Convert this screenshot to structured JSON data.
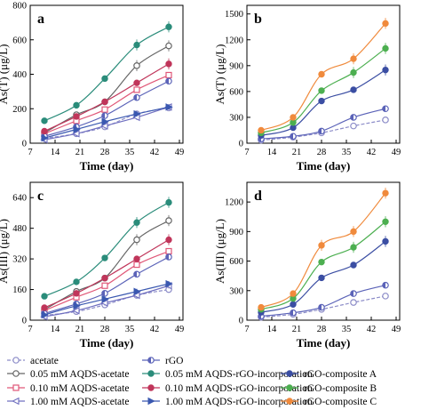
{
  "chart_data": [
    {
      "panel": "a",
      "type": "scatter",
      "xlabel": "Time (day)",
      "ylabel": "As(T) (μg/L)",
      "xlim": [
        7,
        50
      ],
      "ylim": [
        0,
        800
      ],
      "xticks": [
        7,
        14,
        21,
        28,
        35,
        42,
        49
      ],
      "yticks": [
        0,
        200,
        400,
        600,
        800
      ],
      "series": [
        {
          "name": "acetate",
          "x": [
            11,
            20,
            28,
            37,
            46
          ],
          "y": [
            28,
            55,
            95,
            170,
            205
          ]
        },
        {
          "name": "0.05 mM AQDS-acetate",
          "x": [
            11,
            20,
            28,
            37,
            46
          ],
          "y": [
            60,
            165,
            240,
            450,
            565
          ]
        },
        {
          "name": "0.10 mM AQDS-acetate",
          "x": [
            11,
            20,
            28,
            37,
            46
          ],
          "y": [
            55,
            130,
            195,
            310,
            395
          ]
        },
        {
          "name": "1.00 mM AQDS-acetate",
          "x": [
            11,
            20,
            28,
            37,
            46
          ],
          "y": [
            20,
            55,
            100,
            150,
            210
          ]
        },
        {
          "name": "rGO",
          "x": [
            11,
            20,
            28,
            37,
            46
          ],
          "y": [
            40,
            95,
            160,
            265,
            360
          ]
        },
        {
          "name": "0.05 mM AQDS-rGO-incorporation",
          "x": [
            11,
            20,
            28,
            37,
            46
          ],
          "y": [
            130,
            220,
            375,
            570,
            675
          ]
        },
        {
          "name": "0.10 mM AQDS-rGO-incorporation",
          "x": [
            11,
            20,
            28,
            37,
            46
          ],
          "y": [
            70,
            155,
            240,
            350,
            460
          ]
        },
        {
          "name": "1.00 mM AQDS-rGO-incorporation",
          "x": [
            11,
            20,
            28,
            37,
            46
          ],
          "y": [
            30,
            80,
            125,
            170,
            210
          ]
        }
      ]
    },
    {
      "panel": "b",
      "type": "scatter",
      "xlabel": "Time (day)",
      "ylabel": "As(T) (μg/L)",
      "xlim": [
        7,
        50
      ],
      "ylim": [
        0,
        1600
      ],
      "xticks": [
        7,
        14,
        21,
        28,
        35,
        42,
        49
      ],
      "yticks": [
        0,
        300,
        600,
        900,
        1200,
        1500
      ],
      "series": [
        {
          "name": "acetate",
          "x": [
            11,
            20,
            28,
            37,
            46
          ],
          "y": [
            35,
            70,
            120,
            200,
            270
          ]
        },
        {
          "name": "rGO",
          "x": [
            11,
            20,
            28,
            37,
            46
          ],
          "y": [
            50,
            80,
            140,
            300,
            400
          ]
        },
        {
          "name": "rGO-composite A",
          "x": [
            11,
            20,
            28,
            37,
            46
          ],
          "y": [
            90,
            180,
            490,
            620,
            850
          ]
        },
        {
          "name": "rGO-composite B",
          "x": [
            11,
            20,
            28,
            37,
            46
          ],
          "y": [
            120,
            240,
            610,
            820,
            1100
          ]
        },
        {
          "name": "rGO-composite C",
          "x": [
            11,
            20,
            28,
            37,
            46
          ],
          "y": [
            150,
            300,
            800,
            980,
            1390
          ]
        }
      ]
    },
    {
      "panel": "c",
      "type": "scatter",
      "xlabel": "Time (day)",
      "ylabel": "As(III) (μg/L)",
      "xlim": [
        7,
        50
      ],
      "ylim": [
        0,
        720
      ],
      "xticks": [
        7,
        14,
        21,
        28,
        35,
        42,
        49
      ],
      "yticks": [
        0,
        160,
        320,
        480,
        640
      ],
      "series": [
        {
          "name": "acetate",
          "x": [
            11,
            20,
            28,
            37,
            46
          ],
          "y": [
            25,
            45,
            80,
            130,
            160
          ]
        },
        {
          "name": "0.05 mM AQDS-acetate",
          "x": [
            11,
            20,
            28,
            37,
            46
          ],
          "y": [
            55,
            150,
            220,
            420,
            520
          ]
        },
        {
          "name": "0.10 mM AQDS-acetate",
          "x": [
            11,
            20,
            28,
            37,
            46
          ],
          "y": [
            50,
            120,
            180,
            290,
            360
          ]
        },
        {
          "name": "1.00 mM AQDS-acetate",
          "x": [
            11,
            20,
            28,
            37,
            46
          ],
          "y": [
            18,
            50,
            90,
            130,
            180
          ]
        },
        {
          "name": "rGO",
          "x": [
            11,
            20,
            28,
            37,
            46
          ],
          "y": [
            35,
            85,
            140,
            240,
            330
          ]
        },
        {
          "name": "0.05 mM AQDS-rGO-incorporation",
          "x": [
            11,
            20,
            28,
            37,
            46
          ],
          "y": [
            125,
            200,
            325,
            510,
            615
          ]
        },
        {
          "name": "0.10 mM AQDS-rGO-incorporation",
          "x": [
            11,
            20,
            28,
            37,
            46
          ],
          "y": [
            65,
            140,
            220,
            320,
            420
          ]
        },
        {
          "name": "1.00 mM AQDS-rGO-incorporation",
          "x": [
            11,
            20,
            28,
            37,
            46
          ],
          "y": [
            28,
            75,
            110,
            150,
            190
          ]
        }
      ]
    },
    {
      "panel": "d",
      "type": "scatter",
      "xlabel": "Time (day)",
      "ylabel": "As(III) (μg/L)",
      "xlim": [
        7,
        50
      ],
      "ylim": [
        0,
        1400
      ],
      "xticks": [
        7,
        14,
        21,
        28,
        35,
        42,
        49
      ],
      "yticks": [
        0,
        300,
        600,
        900,
        1200
      ],
      "series": [
        {
          "name": "acetate",
          "x": [
            11,
            20,
            28,
            37,
            46
          ],
          "y": [
            30,
            60,
            110,
            180,
            245
          ]
        },
        {
          "name": "rGO",
          "x": [
            11,
            20,
            28,
            37,
            46
          ],
          "y": [
            40,
            75,
            130,
            270,
            355
          ]
        },
        {
          "name": "rGO-composite A",
          "x": [
            11,
            20,
            28,
            37,
            46
          ],
          "y": [
            80,
            160,
            430,
            560,
            800
          ]
        },
        {
          "name": "rGO-composite B",
          "x": [
            11,
            20,
            28,
            37,
            46
          ],
          "y": [
            110,
            220,
            590,
            740,
            1000
          ]
        },
        {
          "name": "rGO-composite C",
          "x": [
            11,
            20,
            28,
            37,
            46
          ],
          "y": [
            130,
            270,
            760,
            900,
            1290
          ]
        }
      ]
    }
  ],
  "legend": [
    {
      "label": "acetate",
      "color": "#8c8cc8",
      "marker": "circle-open",
      "line": "dashed"
    },
    {
      "label": "rGO",
      "color": "#5b63b8",
      "marker": "half-circle",
      "line": "solid"
    },
    {
      "label": "0.05 mM AQDS-acetate",
      "color": "#666666",
      "marker": "circle-open",
      "line": "solid"
    },
    {
      "label": "0.05 mM AQDS-rGO-incorporation",
      "color": "#2a8c7a",
      "marker": "circle-filled",
      "line": "solid"
    },
    {
      "label": "rGO-composite A",
      "color": "#3b4ea3",
      "marker": "circle-filled",
      "line": "solid"
    },
    {
      "label": "0.10 mM AQDS-acetate",
      "color": "#e05878",
      "marker": "square-open",
      "line": "solid"
    },
    {
      "label": "0.10 mM AQDS-rGO-incorporation",
      "color": "#c0355a",
      "marker": "circle-filled",
      "line": "solid"
    },
    {
      "label": "rGO-composite B",
      "color": "#4caf50",
      "marker": "circle-filled",
      "line": "solid"
    },
    {
      "label": "1.00 mM AQDS-acetate",
      "color": "#7070c0",
      "marker": "triangle-left-open",
      "line": "solid"
    },
    {
      "label": "1.00 mM AQDS-rGO-incorporation",
      "color": "#3a58b0",
      "marker": "triangle-right-filled",
      "line": "solid"
    },
    {
      "label": "rGO-composite C",
      "color": "#f08a3c",
      "marker": "circle-filled",
      "line": "solid"
    }
  ],
  "styles": {
    "acetate": {
      "color": "#8c8cc8",
      "marker": "circle-open",
      "dash": true
    },
    "rGO": {
      "color": "#5b63b8",
      "marker": "half-circle",
      "dash": false
    },
    "0.05 mM AQDS-acetate": {
      "color": "#666666",
      "marker": "circle-open",
      "dash": false
    },
    "0.05 mM AQDS-rGO-incorporation": {
      "color": "#2a8c7a",
      "marker": "circle-filled",
      "dash": false
    },
    "rGO-composite A": {
      "color": "#3b4ea3",
      "marker": "circle-filled",
      "dash": false
    },
    "0.10 mM AQDS-acetate": {
      "color": "#e05878",
      "marker": "square-open",
      "dash": false
    },
    "0.10 mM AQDS-rGO-incorporation": {
      "color": "#c0355a",
      "marker": "circle-filled",
      "dash": false
    },
    "rGO-composite B": {
      "color": "#4caf50",
      "marker": "circle-filled",
      "dash": false
    },
    "1.00 mM AQDS-acetate": {
      "color": "#7070c0",
      "marker": "triangle-left-open",
      "dash": false
    },
    "1.00 mM AQDS-rGO-incorporation": {
      "color": "#3a58b0",
      "marker": "triangle-right-filled",
      "dash": false
    },
    "rGO-composite C": {
      "color": "#f08a3c",
      "marker": "circle-filled",
      "dash": false
    }
  }
}
